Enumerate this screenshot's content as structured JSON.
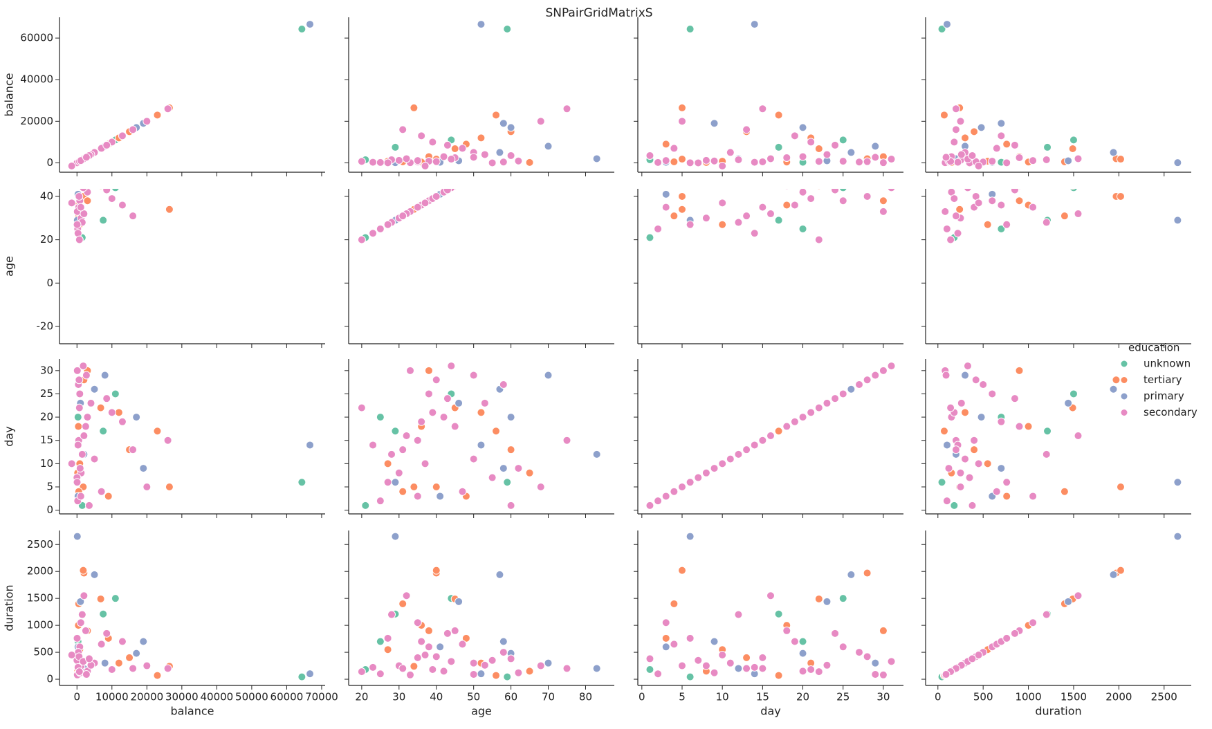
{
  "chart_data": {
    "type": "scatter_matrix",
    "title": "SNPairGridMatrixS",
    "legend_title": "education",
    "legend": "right",
    "variables": [
      {
        "name": "balance",
        "xlim": [
          -5000,
          71000
        ],
        "xticks": [
          0,
          10000,
          20000,
          30000,
          40000,
          50000,
          60000,
          70000
        ],
        "ylim": [
          -4500,
          70000
        ],
        "yticks": [
          0,
          20000,
          40000,
          60000
        ]
      },
      {
        "name": "age",
        "xlim": [
          16.5,
          87.7
        ],
        "xticks": [
          20,
          30,
          40,
          50,
          60,
          70,
          80
        ],
        "ylim": [
          -28,
          43.5
        ],
        "yticks": [
          -20,
          0,
          20,
          40
        ]
      },
      {
        "name": "day",
        "xlim": [
          -0.5,
          32.5
        ],
        "xticks": [
          0,
          5,
          10,
          15,
          20,
          25,
          30
        ],
        "ylim": [
          -0.8,
          32.5
        ],
        "yticks": [
          0,
          5,
          10,
          15,
          20,
          25,
          30
        ]
      },
      {
        "name": "duration",
        "xlim": [
          -136,
          2800
        ],
        "xticks": [
          0,
          500,
          1000,
          1500,
          2000,
          2500
        ],
        "ylim": [
          -115,
          2760
        ],
        "yticks": [
          0,
          500,
          1000,
          1500,
          2000,
          2500
        ]
      }
    ],
    "series": [
      {
        "name": "unknown",
        "color": "#66c2a5",
        "values": [
          [
            64343,
            59,
            6,
            44
          ],
          [
            7500,
            29,
            17,
            1210
          ],
          [
            11000,
            44,
            25,
            1500
          ],
          [
            1500,
            21,
            1,
            180
          ],
          [
            300,
            25,
            20,
            700
          ]
        ]
      },
      {
        "name": "tertiary",
        "color": "#fc8d62",
        "values": [
          [
            26452,
            34,
            5,
            240
          ],
          [
            23000,
            56,
            17,
            70
          ],
          [
            2000,
            40,
            28,
            1970
          ],
          [
            1800,
            40,
            5,
            2020
          ],
          [
            6800,
            45,
            22,
            1490
          ],
          [
            500,
            31,
            4,
            1400
          ],
          [
            15000,
            60,
            13,
            400
          ],
          [
            3000,
            38,
            30,
            900
          ],
          [
            12000,
            52,
            21,
            300
          ],
          [
            800,
            27,
            10,
            550
          ],
          [
            200,
            65,
            8,
            150
          ],
          [
            9000,
            48,
            3,
            760
          ],
          [
            400,
            36,
            18,
            1000
          ]
        ]
      },
      {
        "name": "primary",
        "color": "#8da0cb",
        "values": [
          [
            66653,
            52,
            14,
            101
          ],
          [
            100,
            29,
            6,
            2650
          ],
          [
            19000,
            58,
            9,
            700
          ],
          [
            17000,
            60,
            20,
            480
          ],
          [
            2000,
            83,
            12,
            200
          ],
          [
            5000,
            57,
            26,
            1940
          ],
          [
            1000,
            46,
            23,
            1440
          ],
          [
            8000,
            70,
            29,
            300
          ],
          [
            300,
            41,
            3,
            600
          ]
        ]
      },
      {
        "name": "secondary",
        "color": "#e78ac3",
        "values": [
          [
            26000,
            75,
            15,
            200
          ],
          [
            20000,
            68,
            5,
            250
          ],
          [
            500,
            35,
            15,
            400
          ],
          [
            1200,
            30,
            8,
            250
          ],
          [
            3000,
            42,
            20,
            150
          ],
          [
            200,
            25,
            2,
            100
          ],
          [
            800,
            38,
            25,
            600
          ],
          [
            5000,
            50,
            11,
            300
          ],
          [
            100,
            33,
            30,
            80
          ],
          [
            2500,
            45,
            18,
            900
          ],
          [
            0,
            55,
            7,
            350
          ],
          [
            10000,
            39,
            21,
            180
          ],
          [
            1500,
            28,
            12,
            1200
          ],
          [
            400,
            58,
            27,
            500
          ],
          [
            7000,
            47,
            4,
            650
          ],
          [
            300,
            23,
            14,
            220
          ],
          [
            13000,
            36,
            19,
            700
          ],
          [
            900,
            62,
            9,
            120
          ],
          [
            2000,
            32,
            16,
            1550
          ],
          [
            600,
            40,
            28,
            420
          ],
          [
            4000,
            53,
            23,
            260
          ],
          [
            50,
            27,
            6,
            760
          ],
          [
            1800,
            44,
            31,
            330
          ],
          [
            16000,
            31,
            13,
            200
          ],
          [
            -1500,
            37,
            10,
            450
          ],
          [
            3500,
            60,
            1,
            380
          ],
          [
            700,
            20,
            22,
            140
          ],
          [
            8500,
            43,
            24,
            850
          ],
          [
            1100,
            35,
            3,
            1050
          ],
          [
            2700,
            50,
            29,
            90
          ]
        ]
      }
    ]
  }
}
